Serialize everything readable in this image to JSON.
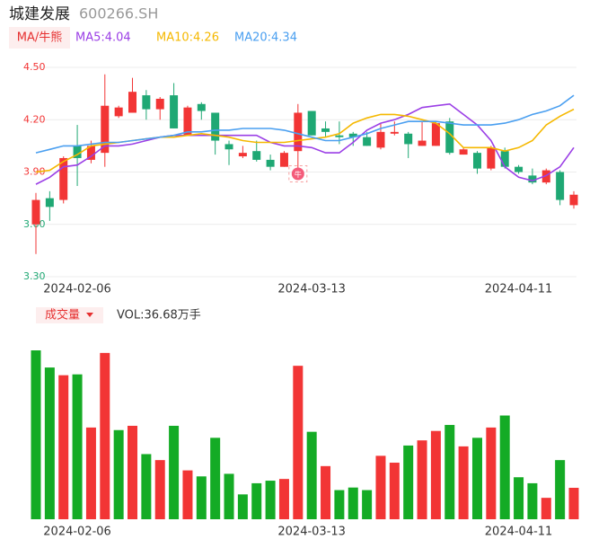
{
  "header": {
    "title": "城建发展",
    "code": "600266.SH"
  },
  "chart_data": [
    {
      "type": "candlestick",
      "indicator": "MA/牛熊",
      "badge": "牛",
      "categories": [
        null,
        null,
        null,
        "2024-02-06",
        null,
        null,
        null,
        null,
        null,
        null,
        null,
        null,
        null,
        null,
        null,
        null,
        null,
        null,
        null,
        null,
        "2024-03-13",
        null,
        null,
        null,
        null,
        null,
        null,
        null,
        null,
        null,
        null,
        null,
        null,
        null,
        null,
        "2024-04-11",
        null,
        null,
        null,
        null
      ],
      "open": [
        3.6,
        3.75,
        3.74,
        4.05,
        3.97,
        4.01,
        4.22,
        4.24,
        4.34,
        4.26,
        4.34,
        4.11,
        4.29,
        4.24,
        4.06,
        3.99,
        4.02,
        3.97,
        3.93,
        4.02,
        4.25,
        4.15,
        4.11,
        4.12,
        4.1,
        4.04,
        4.12,
        4.12,
        4.05,
        4.05,
        4.19,
        4.0,
        4.01,
        3.92,
        4.02,
        3.93,
        3.88,
        3.84,
        3.9,
        3.71
      ],
      "close": [
        3.74,
        3.7,
        3.98,
        3.98,
        4.05,
        4.28,
        4.27,
        4.36,
        4.26,
        4.32,
        4.15,
        4.27,
        4.25,
        4.08,
        4.03,
        4.01,
        3.97,
        3.93,
        4.01,
        4.24,
        4.11,
        4.13,
        4.1,
        4.1,
        4.05,
        4.13,
        4.13,
        4.06,
        4.08,
        4.18,
        4.01,
        4.03,
        3.92,
        4.04,
        3.93,
        3.9,
        3.84,
        3.91,
        3.74,
        3.77
      ],
      "high": [
        3.78,
        3.79,
        3.99,
        4.17,
        4.08,
        4.46,
        4.28,
        4.44,
        4.37,
        4.33,
        4.41,
        4.28,
        4.3,
        4.24,
        4.08,
        4.05,
        4.08,
        4.0,
        4.02,
        4.29,
        4.25,
        4.19,
        4.19,
        4.13,
        4.13,
        4.18,
        4.19,
        4.13,
        4.19,
        4.19,
        4.21,
        4.04,
        4.02,
        4.05,
        4.04,
        3.94,
        3.92,
        3.92,
        3.91,
        3.79
      ],
      "low": [
        3.43,
        3.62,
        3.72,
        3.82,
        3.95,
        3.93,
        4.21,
        4.24,
        4.2,
        4.2,
        4.15,
        4.11,
        4.2,
        4.0,
        3.94,
        3.98,
        3.96,
        3.91,
        3.93,
        3.9,
        4.11,
        4.1,
        4.06,
        4.05,
        4.05,
        4.03,
        4.11,
        3.98,
        4.05,
        4.05,
        4.0,
        4.0,
        3.89,
        3.91,
        3.92,
        3.89,
        3.83,
        3.83,
        3.71,
        3.69
      ],
      "up_color": "#f23535",
      "down_color": "#1fa874",
      "series": [
        {
          "name": "MA5:4.04",
          "color": "#9b3fe6",
          "values": [
            3.83,
            3.87,
            3.93,
            3.94,
            3.99,
            4.05,
            4.05,
            4.06,
            4.08,
            4.1,
            4.11,
            4.11,
            4.11,
            4.11,
            4.11,
            4.11,
            4.11,
            4.07,
            4.05,
            4.05,
            4.04,
            4.01,
            4.01,
            4.07,
            4.14,
            4.18,
            4.2,
            4.23,
            4.27,
            4.28,
            4.29,
            4.23,
            4.17,
            4.08,
            3.93,
            3.87,
            3.85,
            3.88,
            3.93,
            4.04
          ]
        },
        {
          "name": "MA10:4.26",
          "color": "#f5b800",
          "values": [
            3.9,
            3.91,
            3.96,
            4.0,
            4.05,
            4.06,
            4.07,
            4.08,
            4.09,
            4.1,
            4.1,
            4.11,
            4.12,
            4.11,
            4.1,
            4.08,
            4.07,
            4.07,
            4.07,
            4.08,
            4.09,
            4.1,
            4.12,
            4.18,
            4.21,
            4.23,
            4.23,
            4.22,
            4.2,
            4.18,
            4.12,
            4.04,
            4.04,
            4.04,
            4.02,
            4.04,
            4.08,
            4.17,
            4.22,
            4.26
          ]
        },
        {
          "name": "MA20:4.34",
          "color": "#4a9ff0",
          "values": [
            4.01,
            4.03,
            4.05,
            4.05,
            4.06,
            4.07,
            4.07,
            4.08,
            4.09,
            4.1,
            4.11,
            4.13,
            4.13,
            4.14,
            4.14,
            4.15,
            4.15,
            4.15,
            4.14,
            4.12,
            4.1,
            4.08,
            4.08,
            4.1,
            4.12,
            4.15,
            4.17,
            4.19,
            4.19,
            4.19,
            4.18,
            4.17,
            4.17,
            4.17,
            4.18,
            4.2,
            4.23,
            4.25,
            4.28,
            4.34
          ]
        }
      ],
      "ylim": [
        3.3,
        4.5
      ],
      "yticks": [
        {
          "value": 4.5,
          "label": "4.50"
        },
        {
          "value": 4.2,
          "label": "4.20"
        },
        {
          "value": 3.9,
          "label": "3.90"
        },
        {
          "value": 3.6,
          "label": "3.60"
        },
        {
          "value": 3.3,
          "label": "3.30"
        }
      ],
      "ytick_colors": [
        "#f23535",
        "#f23535",
        "#f23535",
        "#1fa874",
        "#1fa874"
      ],
      "grid": true
    },
    {
      "type": "bar",
      "title": "成交量",
      "label": "VOL:36.68万手",
      "categories": [
        null,
        null,
        null,
        "2024-02-06",
        null,
        null,
        null,
        null,
        null,
        null,
        null,
        null,
        null,
        null,
        null,
        null,
        null,
        null,
        null,
        null,
        "2024-03-13",
        null,
        null,
        null,
        null,
        null,
        null,
        null,
        null,
        null,
        null,
        null,
        null,
        null,
        null,
        "2024-04-11",
        null,
        null,
        null,
        null
      ],
      "values": [
        197,
        177,
        168,
        169,
        107,
        194,
        104,
        109,
        76,
        69,
        109,
        57,
        50,
        95,
        53,
        29,
        42,
        45,
        47,
        179,
        102,
        62,
        34,
        37,
        34,
        74,
        66,
        86,
        92,
        103,
        110,
        85,
        95,
        107,
        121,
        49,
        42,
        25,
        69,
        36.68
      ],
      "colors": [
        "#14ab25",
        "#14ab25",
        "#f23535",
        "#14ab25",
        "#f23535",
        "#f23535",
        "#14ab25",
        "#f23535",
        "#14ab25",
        "#f23535",
        "#14ab25",
        "#f23535",
        "#14ab25",
        "#14ab25",
        "#14ab25",
        "#14ab25",
        "#14ab25",
        "#14ab25",
        "#f23535",
        "#f23535",
        "#14ab25",
        "#f23535",
        "#14ab25",
        "#14ab25",
        "#14ab25",
        "#f23535",
        "#f23535",
        "#14ab25",
        "#f23535",
        "#f23535",
        "#14ab25",
        "#f23535",
        "#14ab25",
        "#f23535",
        "#14ab25",
        "#14ab25",
        "#14ab25",
        "#f23535",
        "#14ab25",
        "#f23535"
      ]
    }
  ]
}
